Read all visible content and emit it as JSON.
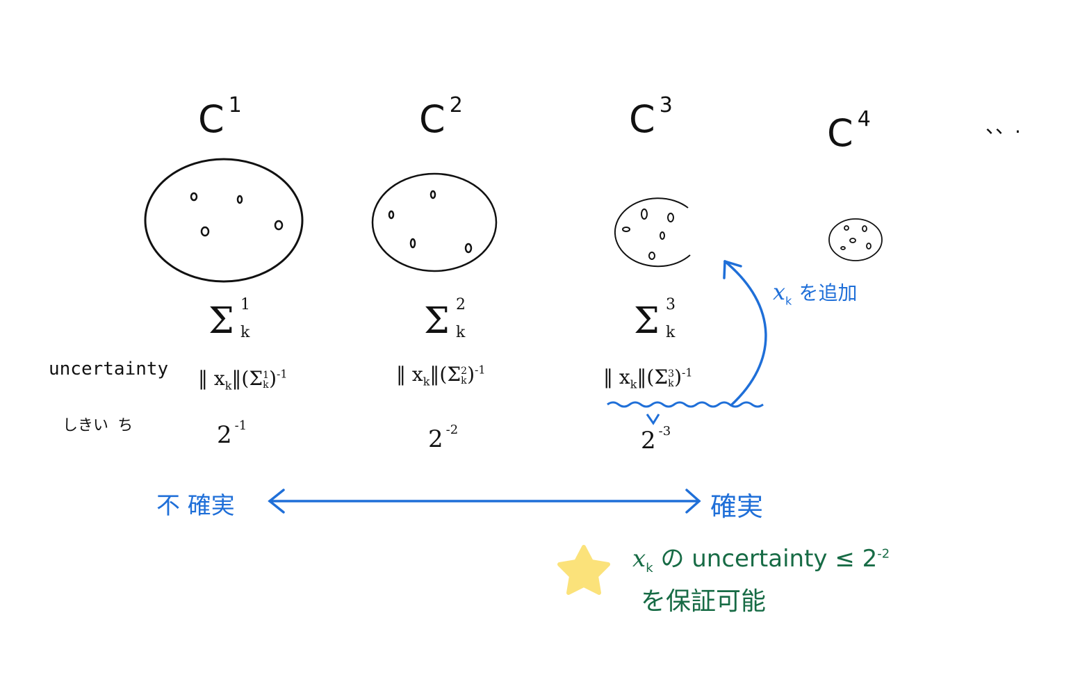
{
  "columns": [
    {
      "title": "C",
      "sup": "1",
      "sigma_sup": "1",
      "sigma_sub": "k",
      "norm": "‖ x",
      "norm_sub": "k",
      "norm_rest": "‖(Σ",
      "norm_sigma_sup": "1",
      "norm_sigma_sub": "k",
      "norm_end": ")",
      "norm_exp": "-1",
      "threshold": "2",
      "threshold_exp": "-1"
    },
    {
      "title": "C",
      "sup": "2",
      "sigma_sup": "2",
      "sigma_sub": "k",
      "norm": "‖ x",
      "norm_sub": "k",
      "norm_rest": "‖(Σ",
      "norm_sigma_sup": "2",
      "norm_sigma_sub": "k",
      "norm_end": ")",
      "norm_exp": "-1",
      "threshold": "2",
      "threshold_exp": "-2"
    },
    {
      "title": "C",
      "sup": "3",
      "sigma_sup": "3",
      "sigma_sub": "k",
      "norm": "‖ x",
      "norm_sub": "k",
      "norm_rest": "‖(Σ",
      "norm_sigma_sup": "3",
      "norm_sigma_sub": "k",
      "norm_end": ")",
      "norm_exp": "-1",
      "threshold": "2",
      "threshold_exp": "-3"
    },
    {
      "title": "C",
      "sup": "4"
    }
  ],
  "ellipsis": "、、.",
  "row_labels": {
    "uncertainty": "uncertainty",
    "threshold": "しきい ち"
  },
  "add_annotation": {
    "var": "x",
    "sub": "k",
    "text": "を追加"
  },
  "scale": {
    "left": "不 確実",
    "right": "確実"
  },
  "note": {
    "var": "x",
    "sub": "k",
    "line1": "の uncertainty ≤ 2",
    "line1_exp": "-2",
    "line2": "を保証可能"
  },
  "colors": {
    "ink": "#111111",
    "blue": "#1f6fd8",
    "green": "#176b45",
    "star": "#fbe27a"
  }
}
